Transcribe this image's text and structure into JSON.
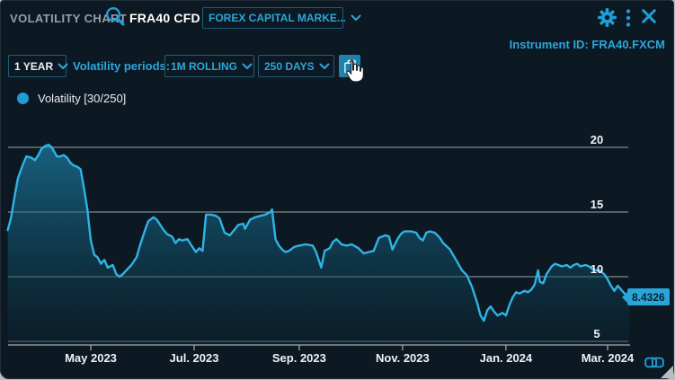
{
  "window": {
    "title": "VOLATILITY CHART",
    "symbol": "FRA40 CFD",
    "provider": "FOREX CAPITAL MARKE...",
    "instrument_id": "Instrument ID: FRA40.FXCM"
  },
  "toolbar": {
    "range_value": "1 YEAR",
    "periods_label": "Volatility periods:",
    "rolling_value": "1M ROLLING",
    "days_value": "250 DAYS"
  },
  "legend": {
    "label": "Volatility [30/250]"
  },
  "badge": {
    "value": "8.4326"
  },
  "icons": {
    "search-icon": "magnifier",
    "gear-icon": "settings gear",
    "kebab-menu-icon": "vertical three dots",
    "close-icon": "x cross",
    "chevron-down-icon": "v chevron",
    "copy-icon": "duplicate pages",
    "link-icon": "chain link",
    "mouse-cursor": "hand pointer"
  },
  "colors": {
    "accent": "#2ba7da",
    "line": "#2fb3e6",
    "area_top": "#1f8db8",
    "badge_bg": "#28a6da",
    "grid": "#b6c0c6",
    "background": "#0c1822",
    "border_teal": "#1e5d7b",
    "button_bg": "#1d83ad"
  },
  "chart_data": {
    "type": "area",
    "title": "Volatility [30/250]",
    "xlabel": "",
    "ylabel": "",
    "ylim": [
      5,
      20
    ],
    "grid": true,
    "legend_position": "top-left",
    "y_ticks": [
      20,
      15,
      10,
      5
    ],
    "x_ticks": [
      {
        "label": "May 2023",
        "date": "2023-05-01"
      },
      {
        "label": "Jul. 2023",
        "date": "2023-07-01"
      },
      {
        "label": "Sep. 2023",
        "date": "2023-09-01"
      },
      {
        "label": "Nov. 2023",
        "date": "2023-11-01"
      },
      {
        "label": "Jan. 2024",
        "date": "2024-01-01"
      },
      {
        "label": "Mar. 2024",
        "date": "2024-03-01"
      }
    ],
    "last_value": 8.4326,
    "series": [
      {
        "name": "Volatility [30/250]",
        "color": "#2fb3e6",
        "points": [
          [
            "2023-03-13",
            13.6
          ],
          [
            "2023-03-15",
            14.6
          ],
          [
            "2023-03-17",
            16.2
          ],
          [
            "2023-03-19",
            17.6
          ],
          [
            "2023-03-22",
            18.7
          ],
          [
            "2023-03-24",
            19.3
          ],
          [
            "2023-03-27",
            19.2
          ],
          [
            "2023-03-29",
            19.0
          ],
          [
            "2023-03-31",
            19.4
          ],
          [
            "2023-04-02",
            19.9
          ],
          [
            "2023-04-04",
            20.1
          ],
          [
            "2023-04-06",
            20.2
          ],
          [
            "2023-04-08",
            20.0
          ],
          [
            "2023-04-11",
            19.3
          ],
          [
            "2023-04-13",
            19.3
          ],
          [
            "2023-04-15",
            19.4
          ],
          [
            "2023-04-17",
            19.2
          ],
          [
            "2023-04-19",
            18.8
          ],
          [
            "2023-04-21",
            18.6
          ],
          [
            "2023-04-23",
            18.5
          ],
          [
            "2023-04-25",
            18.3
          ],
          [
            "2023-04-27",
            16.8
          ],
          [
            "2023-04-29",
            15.2
          ],
          [
            "2023-05-01",
            12.8
          ],
          [
            "2023-05-03",
            11.7
          ],
          [
            "2023-05-05",
            11.5
          ],
          [
            "2023-05-07",
            11.0
          ],
          [
            "2023-05-09",
            11.3
          ],
          [
            "2023-05-11",
            10.7
          ],
          [
            "2023-05-14",
            10.9
          ],
          [
            "2023-05-16",
            10.2
          ],
          [
            "2023-05-18",
            10.0
          ],
          [
            "2023-05-20",
            10.2
          ],
          [
            "2023-05-22",
            10.5
          ],
          [
            "2023-05-25",
            10.9
          ],
          [
            "2023-05-28",
            11.5
          ],
          [
            "2023-05-30",
            12.4
          ],
          [
            "2023-06-02",
            13.6
          ],
          [
            "2023-06-04",
            14.3
          ],
          [
            "2023-06-07",
            14.6
          ],
          [
            "2023-06-09",
            14.4
          ],
          [
            "2023-06-11",
            14.0
          ],
          [
            "2023-06-13",
            13.6
          ],
          [
            "2023-06-15",
            13.3
          ],
          [
            "2023-06-18",
            13.1
          ],
          [
            "2023-06-20",
            12.6
          ],
          [
            "2023-06-22",
            12.9
          ],
          [
            "2023-06-24",
            12.8
          ],
          [
            "2023-06-27",
            12.9
          ],
          [
            "2023-06-29",
            12.5
          ],
          [
            "2023-07-02",
            11.9
          ],
          [
            "2023-07-04",
            12.2
          ],
          [
            "2023-07-06",
            12.0
          ],
          [
            "2023-07-08",
            14.8
          ],
          [
            "2023-07-11",
            14.8
          ],
          [
            "2023-07-14",
            14.7
          ],
          [
            "2023-07-16",
            14.5
          ],
          [
            "2023-07-19",
            13.4
          ],
          [
            "2023-07-22",
            13.2
          ],
          [
            "2023-07-24",
            13.5
          ],
          [
            "2023-07-27",
            14.0
          ],
          [
            "2023-07-30",
            14.1
          ],
          [
            "2023-07-31",
            13.7
          ],
          [
            "2023-08-03",
            14.4
          ],
          [
            "2023-08-06",
            14.6
          ],
          [
            "2023-08-09",
            14.7
          ],
          [
            "2023-08-12",
            14.8
          ],
          [
            "2023-08-15",
            15.0
          ],
          [
            "2023-08-16",
            15.2
          ],
          [
            "2023-08-18",
            12.9
          ],
          [
            "2023-08-20",
            12.4
          ],
          [
            "2023-08-22",
            12.1
          ],
          [
            "2023-08-24",
            11.9
          ],
          [
            "2023-08-26",
            12.0
          ],
          [
            "2023-08-29",
            12.3
          ],
          [
            "2023-09-01",
            12.4
          ],
          [
            "2023-09-05",
            12.5
          ],
          [
            "2023-09-09",
            12.4
          ],
          [
            "2023-09-11",
            11.9
          ],
          [
            "2023-09-14",
            10.7
          ],
          [
            "2023-09-16",
            12.0
          ],
          [
            "2023-09-19",
            12.2
          ],
          [
            "2023-09-21",
            12.7
          ],
          [
            "2023-09-23",
            12.9
          ],
          [
            "2023-09-26",
            12.5
          ],
          [
            "2023-09-29",
            12.4
          ],
          [
            "2023-10-02",
            12.5
          ],
          [
            "2023-10-06",
            12.2
          ],
          [
            "2023-10-09",
            11.8
          ],
          [
            "2023-10-12",
            11.9
          ],
          [
            "2023-10-15",
            12.0
          ],
          [
            "2023-10-18",
            13.0
          ],
          [
            "2023-10-22",
            13.2
          ],
          [
            "2023-10-24",
            13.1
          ],
          [
            "2023-10-26",
            12.1
          ],
          [
            "2023-10-29",
            12.9
          ],
          [
            "2023-10-31",
            13.3
          ],
          [
            "2023-11-02",
            13.5
          ],
          [
            "2023-11-06",
            13.5
          ],
          [
            "2023-11-09",
            13.4
          ],
          [
            "2023-11-11",
            13.0
          ],
          [
            "2023-11-13",
            12.8
          ],
          [
            "2023-11-15",
            13.4
          ],
          [
            "2023-11-17",
            13.5
          ],
          [
            "2023-11-20",
            13.4
          ],
          [
            "2023-11-23",
            13.0
          ],
          [
            "2023-11-25",
            12.6
          ],
          [
            "2023-11-29",
            12.1
          ],
          [
            "2023-12-03",
            11.2
          ],
          [
            "2023-12-06",
            10.5
          ],
          [
            "2023-12-09",
            10.1
          ],
          [
            "2023-12-12",
            9.2
          ],
          [
            "2023-12-15",
            8.0
          ],
          [
            "2023-12-17",
            7.0
          ],
          [
            "2023-12-19",
            6.6
          ],
          [
            "2023-12-21",
            7.4
          ],
          [
            "2023-12-23",
            7.7
          ],
          [
            "2023-12-25",
            7.3
          ],
          [
            "2023-12-27",
            7.0
          ],
          [
            "2023-12-30",
            7.2
          ],
          [
            "2024-01-01",
            7.0
          ],
          [
            "2024-01-03",
            7.8
          ],
          [
            "2024-01-05",
            8.4
          ],
          [
            "2024-01-07",
            8.8
          ],
          [
            "2024-01-09",
            8.7
          ],
          [
            "2024-01-12",
            8.9
          ],
          [
            "2024-01-14",
            8.8
          ],
          [
            "2024-01-16",
            9.0
          ],
          [
            "2024-01-18",
            9.4
          ],
          [
            "2024-01-20",
            10.5
          ],
          [
            "2024-01-21",
            9.6
          ],
          [
            "2024-01-23",
            9.5
          ],
          [
            "2024-01-25",
            10.2
          ],
          [
            "2024-01-28",
            10.8
          ],
          [
            "2024-01-30",
            11.0
          ],
          [
            "2024-02-01",
            10.9
          ],
          [
            "2024-02-03",
            10.8
          ],
          [
            "2024-02-06",
            10.9
          ],
          [
            "2024-02-08",
            10.7
          ],
          [
            "2024-02-10",
            10.9
          ],
          [
            "2024-02-12",
            11.0
          ],
          [
            "2024-02-14",
            10.8
          ],
          [
            "2024-02-17",
            10.9
          ],
          [
            "2024-02-19",
            10.8
          ],
          [
            "2024-02-21",
            10.6
          ],
          [
            "2024-02-23",
            10.5
          ],
          [
            "2024-02-25",
            10.5
          ],
          [
            "2024-02-28",
            10.2
          ],
          [
            "2024-03-01",
            9.8
          ],
          [
            "2024-03-03",
            9.3
          ],
          [
            "2024-03-05",
            8.9
          ],
          [
            "2024-03-07",
            9.3
          ],
          [
            "2024-03-09",
            9.0
          ],
          [
            "2024-03-11",
            8.7
          ],
          [
            "2024-03-13",
            8.5
          ],
          [
            "2024-03-14",
            8.4326
          ]
        ]
      }
    ]
  }
}
